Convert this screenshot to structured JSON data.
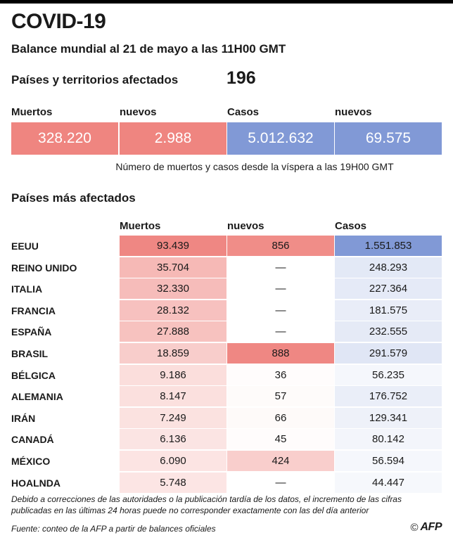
{
  "header": {
    "title": "COVID-19",
    "subtitle": "Balance mundial al 21 de mayo a las 11H00 GMT"
  },
  "affected": {
    "label": "Países y territorios afectados",
    "value": "196"
  },
  "summary": {
    "labels": [
      "Muertos",
      "nuevos",
      "Casos",
      "nuevos"
    ],
    "values": [
      "328.220",
      "2.988",
      "5.012.632",
      "69.575"
    ],
    "note": "Número de muertos y casos desde la víspera a las 19H00 GMT"
  },
  "table": {
    "section_title": "Países más afectados",
    "columns": [
      "Muertos",
      "nuevos",
      "Casos"
    ],
    "rows": [
      {
        "country": "EEUU",
        "deaths": "93.439",
        "new": "856",
        "cases": "1.551.853"
      },
      {
        "country": "REINO UNIDO",
        "deaths": "35.704",
        "new": "—",
        "cases": "248.293"
      },
      {
        "country": "ITALIA",
        "deaths": "32.330",
        "new": "—",
        "cases": "227.364"
      },
      {
        "country": "FRANCIA",
        "deaths": "28.132",
        "new": "—",
        "cases": "181.575"
      },
      {
        "country": "ESPAÑA",
        "deaths": "27.888",
        "new": "—",
        "cases": "232.555"
      },
      {
        "country": "BRASIL",
        "deaths": "18.859",
        "new": "888",
        "cases": "291.579"
      },
      {
        "country": "BÉLGICA",
        "deaths": "9.186",
        "new": "36",
        "cases": "56.235"
      },
      {
        "country": "ALEMANIA",
        "deaths": "8.147",
        "new": "57",
        "cases": "176.752"
      },
      {
        "country": "IRÁN",
        "deaths": "7.249",
        "new": "66",
        "cases": "129.341"
      },
      {
        "country": "CANADÁ",
        "deaths": "6.136",
        "new": "45",
        "cases": "80.142"
      },
      {
        "country": "MÉXICO",
        "deaths": "6.090",
        "new": "424",
        "cases": "56.594"
      },
      {
        "country": "HOALNDA",
        "deaths": "5.748",
        "new": "—",
        "cases": "44.447"
      }
    ]
  },
  "footer": {
    "note": "Debido a correcciones de las autoridades o la publicación tardía de los datos, el incremento de las cifras publicadas en las últimas 24 horas puede no corresponder exactamente con las del día anterior",
    "source": "Fuente: conteo de la AFP a partir de balances oficiales",
    "logo_circle": "©",
    "logo_text": "AFP"
  },
  "colors": {
    "deaths": "#ef8580",
    "cases": "#8199d6",
    "text": "#1a1a1a"
  }
}
